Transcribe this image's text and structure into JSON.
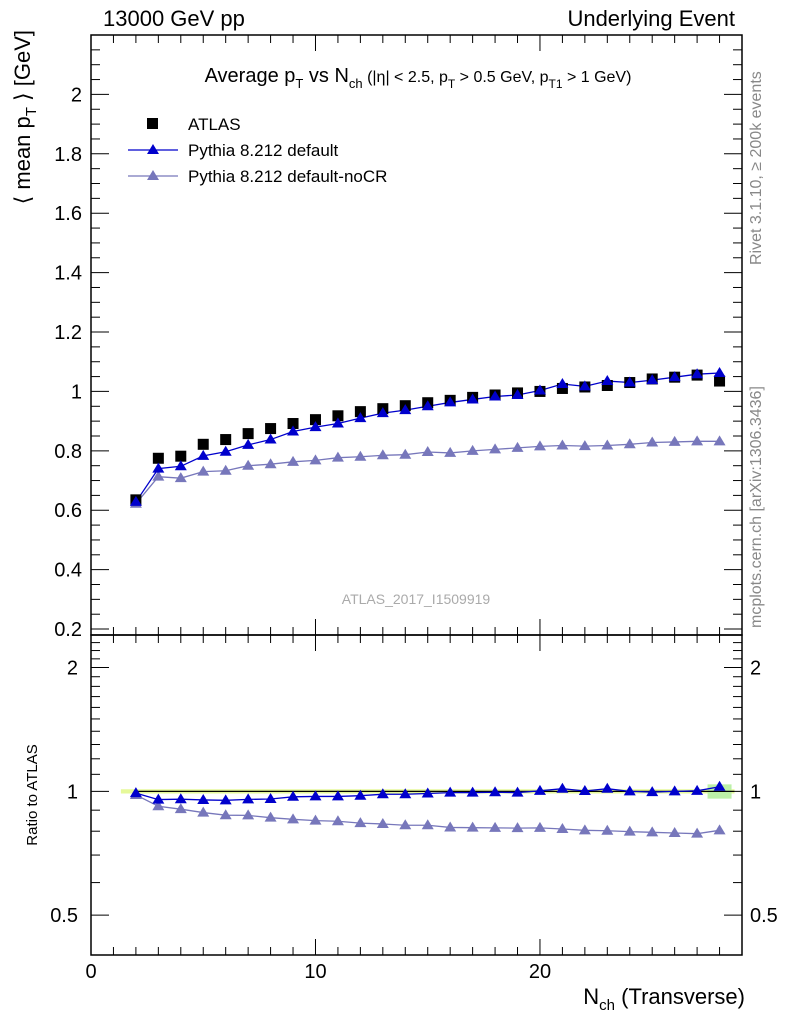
{
  "header": {
    "left": "13000 GeV pp",
    "right": "Underlying Event"
  },
  "side_labels": {
    "rivet": "Rivet 3.1.10, ≥ 200k events",
    "mcplots": "mcplots.cern.ch [arXiv:1306.3436]"
  },
  "chart_data": [
    {
      "type": "scatter",
      "panel": "main",
      "title": "Average pT vs Nch (|η| < 2.5, pT > 0.5 GeV, pT1 > 1 GeV)",
      "analysis_label": "ATLAS_2017_I1509919",
      "xlabel": "Nch (Transverse)",
      "ylabel": "⟨ mean pT ⟩ [GeV]",
      "xlim": [
        0,
        29
      ],
      "ylim": [
        0.18,
        2.2
      ],
      "yticks": [
        0.2,
        0.4,
        0.6,
        0.8,
        1,
        1.2,
        1.4,
        1.6,
        1.8,
        2
      ],
      "ytick_labels": [
        "0.2",
        "0.4",
        "0.6",
        "0.8",
        "1",
        "1.2",
        "1.4",
        "1.6",
        "1.8",
        "2"
      ],
      "legend": {
        "placement": "top-left",
        "entries": [
          "ATLAS",
          "Pythia 8.212 default",
          "Pythia 8.212 default-noCR"
        ]
      },
      "x": [
        2,
        3,
        4,
        5,
        6,
        7,
        8,
        9,
        10,
        11,
        12,
        13,
        14,
        15,
        16,
        17,
        18,
        19,
        20,
        21,
        22,
        23,
        24,
        25,
        26,
        27,
        28
      ],
      "series": [
        {
          "name": "ATLAS",
          "color": "#000000",
          "marker": "square",
          "values": [
            0.635,
            0.775,
            0.782,
            0.822,
            0.838,
            0.858,
            0.875,
            0.892,
            0.905,
            0.918,
            0.932,
            0.942,
            0.952,
            0.962,
            0.97,
            0.98,
            0.988,
            0.995,
            1.0,
            1.01,
            1.015,
            1.02,
            1.03,
            1.042,
            1.048,
            1.055,
            1.035
          ]
        },
        {
          "name": "Pythia 8.212 default",
          "color": "#0000cc",
          "marker": "triangle",
          "values": [
            0.628,
            0.74,
            0.748,
            0.783,
            0.797,
            0.82,
            0.838,
            0.865,
            0.88,
            0.892,
            0.91,
            0.927,
            0.937,
            0.95,
            0.963,
            0.973,
            0.983,
            0.988,
            1.003,
            1.025,
            1.017,
            1.035,
            1.03,
            1.038,
            1.048,
            1.058,
            1.062
          ]
        },
        {
          "name": "Pythia 8.212 default-noCR",
          "color": "#7777bb",
          "marker": "triangle",
          "values": [
            0.622,
            0.713,
            0.708,
            0.73,
            0.733,
            0.75,
            0.755,
            0.763,
            0.768,
            0.777,
            0.78,
            0.785,
            0.787,
            0.796,
            0.793,
            0.8,
            0.805,
            0.81,
            0.815,
            0.818,
            0.816,
            0.818,
            0.822,
            0.828,
            0.83,
            0.832,
            0.832
          ]
        }
      ]
    },
    {
      "type": "scatter",
      "panel": "ratio",
      "ylabel": "Ratio to ATLAS",
      "xlabel": "Nch (Transverse)",
      "xlim": [
        0,
        29
      ],
      "ylim": [
        0.4,
        2.4
      ],
      "yscale": "log",
      "yticks": [
        0.5,
        1,
        2
      ],
      "ytick_labels": [
        "0.5",
        "1",
        "2"
      ],
      "xticks": [
        0,
        10,
        20
      ],
      "xtick_labels": [
        "0",
        "10",
        "20"
      ],
      "x": [
        2,
        3,
        4,
        5,
        6,
        7,
        8,
        9,
        10,
        11,
        12,
        13,
        14,
        15,
        16,
        17,
        18,
        19,
        20,
        21,
        22,
        23,
        24,
        25,
        26,
        27,
        28
      ],
      "series": [
        {
          "name": "Pythia 8.212 default",
          "color": "#0000cc",
          "marker": "triangle",
          "values": [
            0.99,
            0.955,
            0.957,
            0.953,
            0.951,
            0.956,
            0.958,
            0.97,
            0.972,
            0.972,
            0.976,
            0.984,
            0.984,
            0.988,
            0.993,
            0.993,
            0.995,
            0.993,
            1.003,
            1.015,
            1.002,
            1.015,
            1.0,
            0.996,
            1.0,
            1.003,
            1.026
          ]
        },
        {
          "name": "Pythia 8.212 default-noCR",
          "color": "#7777bb",
          "marker": "triangle",
          "values": [
            0.98,
            0.92,
            0.905,
            0.888,
            0.875,
            0.874,
            0.863,
            0.855,
            0.849,
            0.846,
            0.837,
            0.833,
            0.827,
            0.827,
            0.817,
            0.816,
            0.815,
            0.814,
            0.815,
            0.81,
            0.804,
            0.802,
            0.798,
            0.795,
            0.792,
            0.789,
            0.804
          ]
        }
      ]
    }
  ]
}
